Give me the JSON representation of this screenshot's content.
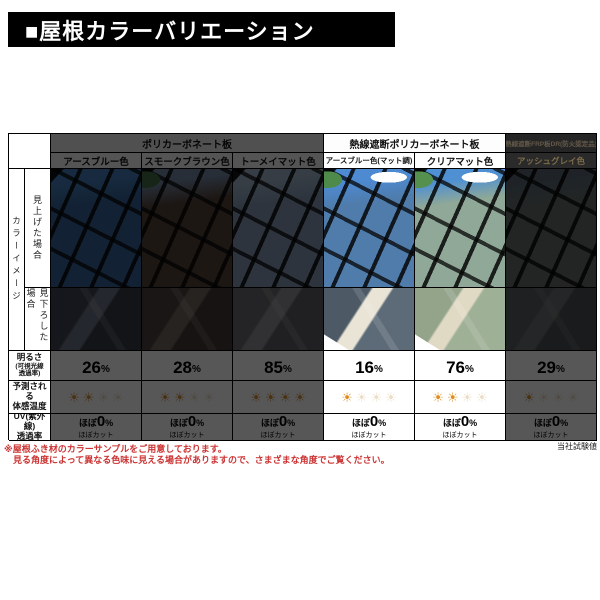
{
  "banner": {
    "title": "■屋根カラーバリエーション"
  },
  "table": {
    "groups": [
      {
        "label": "ポリカーボネート板"
      },
      {
        "label": "熱線遮断ポリカーボネート板"
      },
      {
        "label": "熱線遮断FRP板DR(防火認定品)"
      }
    ],
    "row_labels": {
      "color_image": "カラーイメージ",
      "look_up": "見上げた場合",
      "look_down": "見下ろした場合",
      "brightness_line1": "明るさ",
      "brightness_line2": "(可視光線",
      "brightness_line3": "透過率)",
      "temp_line1": "予測される",
      "temp_line2": "体感温度",
      "uv_line1": "UV(紫外線)",
      "uv_line2": "透過率"
    },
    "percent_unit": "%",
    "uv_cell": {
      "prefix": "ほぼ",
      "value": "0",
      "unit": "%",
      "note": "ほぼカット"
    },
    "columns": [
      {
        "label": "アースブルー色",
        "dimmed": true,
        "brightness": "26",
        "suns": {
          "active": 2,
          "total": 4
        },
        "colors": {
          "up_sky": "#3c7ec6",
          "up_panel": "#2f65a5",
          "down_a": "#3e4554",
          "down_beam": "#6a7286",
          "down_b": "#343b48"
        }
      },
      {
        "label": "スモークブラウン色",
        "dimmed": true,
        "brightness": "28",
        "suns": {
          "active": 2,
          "total": 4
        },
        "colors": {
          "up_sky": "#6f88a8",
          "up_panel": "#584238",
          "foliage": "#3f6b42",
          "down_a": "#4e413c",
          "down_beam": "#75675f",
          "down_b": "#443733"
        }
      },
      {
        "label": "トーメイマット色",
        "dimmed": true,
        "brightness": "85",
        "suns": {
          "active": 4,
          "total": 4
        },
        "colors": {
          "up_sky": "#9ab4d0",
          "up_panel": "#8099b8",
          "down_a": "#6b6b71",
          "down_beam": "#8f8f96",
          "down_b": "#5f5f66"
        }
      },
      {
        "label": "アースブルー色(マット調)",
        "dimmed": false,
        "brightness": "16",
        "suns": {
          "active": 1,
          "total": 4
        },
        "colors": {
          "up_sky": "#4d8ad2",
          "up_panel": "#4f7cab",
          "cloud": "#ffffff",
          "foliage": "#4e8a4a",
          "down_a": "#4d5a66",
          "down_beam": "#e9e4d6",
          "down_b": "#5d6b78",
          "corner": "#ffffff"
        }
      },
      {
        "label": "クリアマット色",
        "dimmed": false,
        "brightness": "76",
        "suns": {
          "active": 2,
          "total": 4
        },
        "colors": {
          "up_sky": "#4f90d2",
          "up_panel": "#8fa897",
          "cloud": "#ffffff",
          "foliage": "#55904e",
          "down_a": "#93a48b",
          "down_beam": "#e0d9c4",
          "down_b": "#9eb095",
          "corner": "#ffffff"
        }
      },
      {
        "label": "アッシュグレイ色",
        "dimmed": true,
        "brightness": "29",
        "suns": {
          "active": 1,
          "total": 4
        },
        "colors": {
          "up_sky": "#6f89a4",
          "up_panel": "#7e918c",
          "down_a": "#747c80",
          "down_beam": "#8c9498",
          "down_b": "#62696d"
        }
      }
    ]
  },
  "icons": {
    "sun_glyph": "☀"
  },
  "colors": {
    "banner_bg": "#000000",
    "banner_text": "#ffffff",
    "sun_active": "#dd8d1e",
    "sun_inactive": "#ecdfc8",
    "footnote_red": "#cc3333"
  },
  "footnotes": {
    "line1": "※屋根ふき材のカラーサンプルをご用意しております。",
    "line2": "見る角度によって異なる色味に見える場合がありますので、さまざまな角度でご覧ください。",
    "test_note": "当社試験値"
  }
}
